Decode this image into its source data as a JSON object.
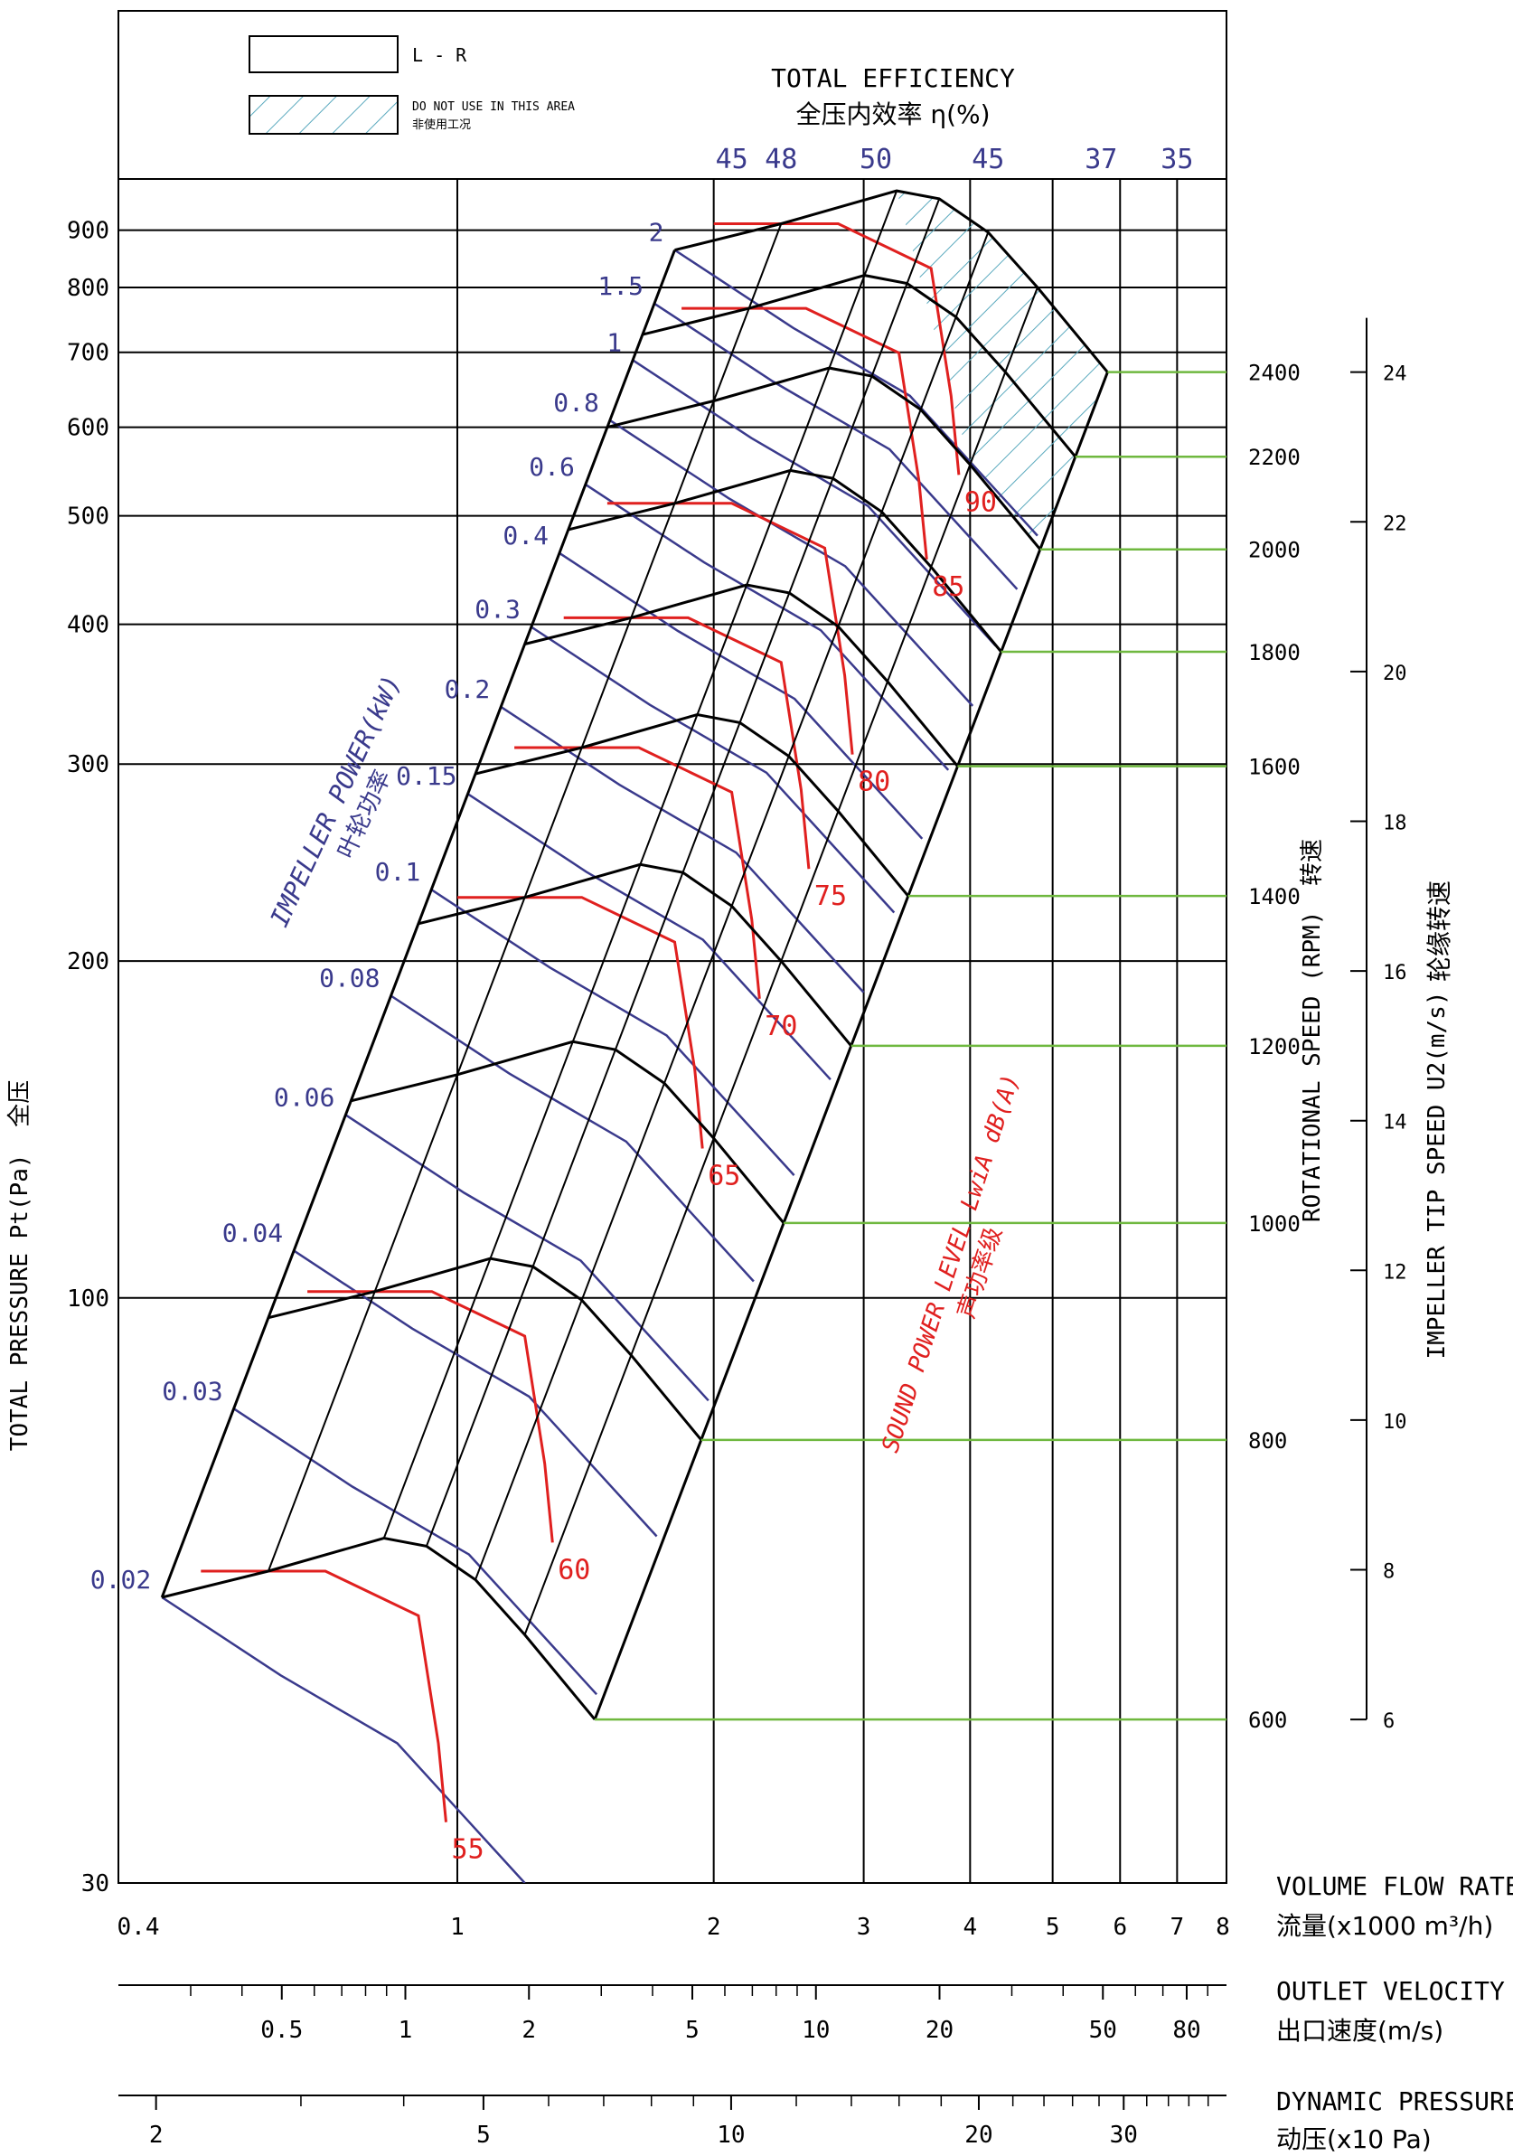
{
  "chart_data": {
    "type": "line",
    "subtype": "fan performance chart (log-log)",
    "legend": [
      {
        "label": "L - R",
        "style": "plain box"
      },
      {
        "label": "DO NOT USE IN THIS AREA",
        "label_cn": "非使用工况",
        "style": "hatched box"
      }
    ],
    "efficiency_title": "TOTAL EFFICIENCY",
    "efficiency_title_cn": "全压内效率 η(%)",
    "efficiency_values": [
      {
        "label": "45",
        "x": 2.1
      },
      {
        "label": "48",
        "x": 2.4
      },
      {
        "label": "50",
        "x": 3.1
      },
      {
        "label": "45",
        "x": 4.2
      },
      {
        "label": "37",
        "x": 5.7
      },
      {
        "label": "35",
        "x": 7.0
      }
    ],
    "y_axis": {
      "label": "TOTAL PRESSURE Pt(Pa)",
      "label_cn": "全压",
      "scale": "log",
      "range": [
        30,
        1000
      ],
      "ticks": [
        30,
        100,
        200,
        300,
        400,
        500,
        600,
        700,
        800,
        900
      ]
    },
    "x_axis": {
      "label": "VOLUME FLOW RATE",
      "label_cn": "流量(x1000 m³/h)",
      "scale": "log",
      "range": [
        0.4,
        8
      ],
      "ticks": [
        "0.4",
        "1",
        "2",
        "3",
        "4",
        "5",
        "6",
        "7",
        "8"
      ]
    },
    "outlet_velocity_axis": {
      "label": "OUTLET VELOCITY",
      "label_cn": "出口速度(m/s)",
      "ticks": [
        "0.5",
        "1",
        "2",
        "5",
        "10",
        "20",
        "50",
        "80"
      ]
    },
    "dynamic_pressure_axis": {
      "label": "DYNAMIC PRESSURE",
      "label_cn": "动压(x10 Pa)",
      "ticks": [
        "2",
        "5",
        "10",
        "20",
        "30"
      ]
    },
    "rotational_speed": {
      "label": "ROTATIONAL SPEED (RPM)",
      "label_cn": "转速",
      "values": [
        600,
        800,
        1000,
        1200,
        1400,
        1600,
        1800,
        2000,
        2200,
        2400
      ]
    },
    "tip_speed": {
      "label": "IMPELLER TIP SPEED U2(m/s)",
      "label_cn": "轮缘转速",
      "ticks": [
        6,
        8,
        10,
        12,
        14,
        16,
        18,
        20,
        22,
        24
      ]
    },
    "impeller_power": {
      "label": "IMPELLER POWER(kW)",
      "label_cn": "叶轮功率",
      "values": [
        "0.02",
        "0.03",
        "0.04",
        "0.06",
        "0.08",
        "0.1",
        "0.15",
        "0.2",
        "0.3",
        "0.4",
        "0.6",
        "0.8",
        "1",
        "1.5",
        "2"
      ]
    },
    "sound_power": {
      "label": "SOUND POWER LEVEL LwiA dB(A)",
      "label_cn": "声功率级",
      "values": [
        "55",
        "60",
        "65",
        "70",
        "75",
        "80",
        "85",
        "90"
      ]
    },
    "colors": {
      "axes": "#000000",
      "speed_curves": "#000000",
      "power_curves": "#3a3a8c",
      "sound_curves": "#e0201f",
      "speed_leader_lines": "#6fb83f",
      "hatch": "#5aa9be"
    }
  }
}
